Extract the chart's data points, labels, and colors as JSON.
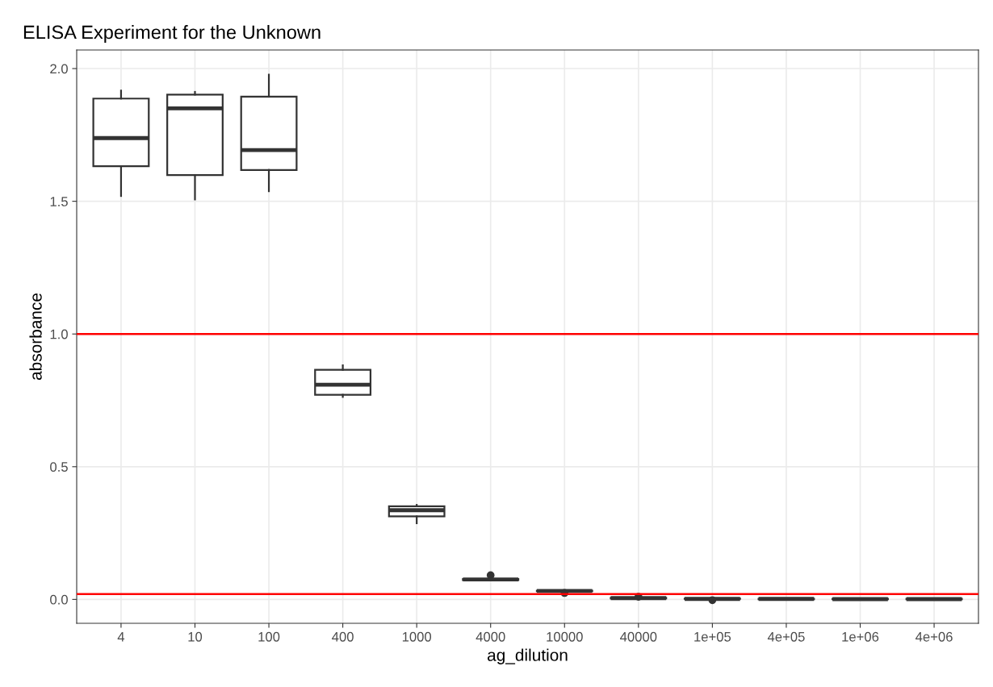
{
  "chart_data": {
    "type": "box",
    "title": "ELISA Experiment for the Unknown",
    "xlabel": "ag_dilution",
    "ylabel": "absorbance",
    "categories": [
      "4",
      "10",
      "100",
      "400",
      "1000",
      "4000",
      "10000",
      "40000",
      "1e+05",
      "4e+05",
      "1e+06",
      "4e+06"
    ],
    "boxes": [
      {
        "low": 1.52,
        "q1": 1.632,
        "median": 1.738,
        "q3": 1.887,
        "high": 1.917
      },
      {
        "low": 1.507,
        "q1": 1.599,
        "median": 1.85,
        "q3": 1.902,
        "high": 1.912
      },
      {
        "low": 1.538,
        "q1": 1.618,
        "median": 1.693,
        "q3": 1.894,
        "high": 1.977
      },
      {
        "low": 0.763,
        "q1": 0.771,
        "median": 0.809,
        "q3": 0.865,
        "high": 0.882
      },
      {
        "low": 0.287,
        "q1": 0.313,
        "median": 0.336,
        "q3": 0.351,
        "high": 0.356
      },
      {
        "low": 0.072,
        "q1": 0.073,
        "median": 0.075,
        "q3": 0.077,
        "high": 0.078,
        "outliers": [
          0.091
        ]
      },
      {
        "low": 0.03,
        "q1": 0.031,
        "median": 0.032,
        "q3": 0.033,
        "high": 0.034,
        "outliers": [
          0.024
        ]
      },
      {
        "low": 0.004,
        "q1": 0.004,
        "median": 0.005,
        "q3": 0.006,
        "high": 0.006,
        "outliers": [
          0.01
        ]
      },
      {
        "low": 0.001,
        "q1": 0.002,
        "median": 0.002,
        "q3": 0.003,
        "high": 0.003,
        "outliers": [
          -0.003
        ]
      },
      {
        "low": 0.001,
        "q1": 0.001,
        "median": 0.002,
        "q3": 0.002,
        "high": 0.002
      },
      {
        "low": 0.0,
        "q1": 0.001,
        "median": 0.001,
        "q3": 0.002,
        "high": 0.002
      },
      {
        "low": 0.0,
        "q1": 0.001,
        "median": 0.001,
        "q3": 0.002,
        "high": 0.002
      }
    ],
    "ylim": [
      -0.09,
      2.07
    ],
    "yticks": [
      {
        "value": 0,
        "label": "0.0"
      },
      0.5,
      {
        "value": 1,
        "label": "1.0"
      },
      1.5,
      {
        "value": 2,
        "label": "2.0"
      }
    ],
    "ref_lines": [
      {
        "axis": "y",
        "value": 1.0,
        "color": "#ff0000"
      },
      {
        "axis": "y",
        "value": 0.02,
        "color": "#ff0000"
      }
    ],
    "grid": true
  }
}
